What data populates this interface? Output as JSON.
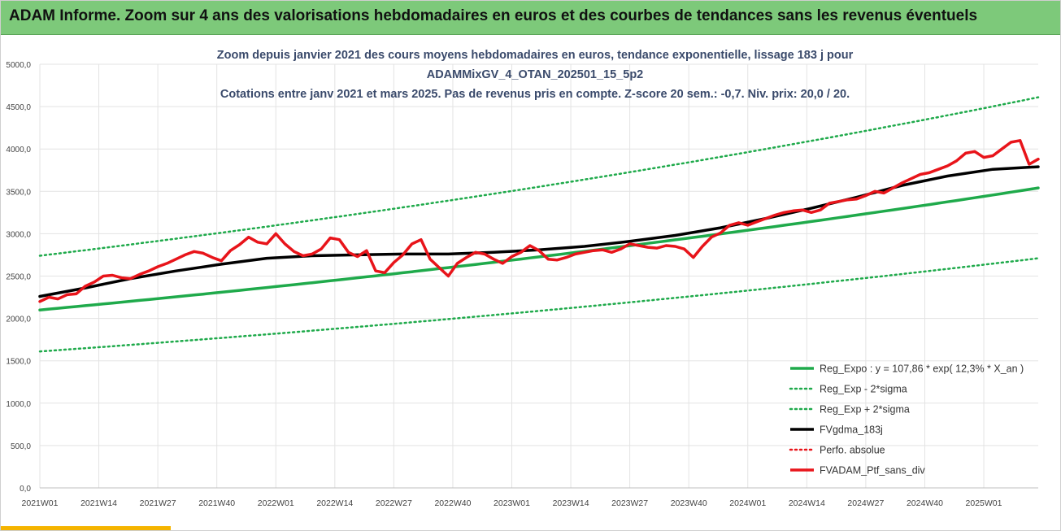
{
  "header": {
    "title": "ADAM Informe. Zoom sur 4 ans des valorisations hebdomadaires en euros et des courbes de tendances sans les revenus éventuels",
    "bg_color": "#7dc97a"
  },
  "chart_data": {
    "type": "line",
    "title_lines": [
      "Zoom depuis janvier 2021 des cours moyens hebdomadaires  en euros, tendance exponentielle, lissage 183 j pour",
      "ADAMMixGV_4_OTAN_202501_15_5p2",
      "Cotations entre janv 2021 et mars 2025. Pas de revenus pris en compte. Z-score 20 sem.: -0,7. Niv. prix: 20,0 / 20."
    ],
    "xlabel": "",
    "ylabel": "",
    "ylim": [
      0,
      5000
    ],
    "y_ticks": [
      "0,0",
      "500,0",
      "1000,0",
      "1500,0",
      "2000,0",
      "2500,0",
      "3000,0",
      "3500,0",
      "4000,0",
      "4500,0",
      "5000,0"
    ],
    "x_range_weeks": [
      0,
      220
    ],
    "x_ticks": [
      {
        "label": "2021W01",
        "week": 0
      },
      {
        "label": "2021W14",
        "week": 13
      },
      {
        "label": "2021W27",
        "week": 26
      },
      {
        "label": "2021W40",
        "week": 39
      },
      {
        "label": "2022W01",
        "week": 52
      },
      {
        "label": "2022W14",
        "week": 65
      },
      {
        "label": "2022W27",
        "week": 78
      },
      {
        "label": "2022W40",
        "week": 91
      },
      {
        "label": "2023W01",
        "week": 104
      },
      {
        "label": "2023W14",
        "week": 117
      },
      {
        "label": "2023W27",
        "week": 130
      },
      {
        "label": "2023W40",
        "week": 143
      },
      {
        "label": "2024W01",
        "week": 156
      },
      {
        "label": "2024W14",
        "week": 169
      },
      {
        "label": "2024W27",
        "week": 182
      },
      {
        "label": "2024W40",
        "week": 195
      },
      {
        "label": "2025W01",
        "week": 208
      }
    ],
    "grid": true,
    "legend_position": "bottom-right",
    "series": [
      {
        "name": "Reg_Expo : y = 107,86 * exp( 12,3% *  X_an )",
        "color": "#1faa4b",
        "style": "solid",
        "width": 3.5,
        "x": [
          0,
          220
        ],
        "y": [
          2100,
          3540
        ],
        "interp": "exp"
      },
      {
        "name": "Reg_Exp - 2*sigma",
        "color": "#1faa4b",
        "style": "dotted",
        "width": 2.5,
        "x": [
          0,
          220
        ],
        "y": [
          1610,
          2710
        ],
        "interp": "exp"
      },
      {
        "name": "Reg_Exp + 2*sigma",
        "color": "#1faa4b",
        "style": "dotted",
        "width": 2.5,
        "x": [
          0,
          220
        ],
        "y": [
          2740,
          4610
        ],
        "interp": "exp"
      },
      {
        "name": "FVgdma_183j",
        "color": "#000000",
        "style": "solid",
        "width": 3.5,
        "x": [
          0,
          10,
          20,
          30,
          40,
          50,
          60,
          70,
          80,
          90,
          100,
          110,
          120,
          130,
          140,
          150,
          160,
          170,
          180,
          190,
          200,
          210,
          220
        ],
        "y": [
          2260,
          2360,
          2470,
          2560,
          2640,
          2710,
          2740,
          2750,
          2760,
          2760,
          2780,
          2810,
          2850,
          2910,
          2980,
          3070,
          3180,
          3300,
          3430,
          3570,
          3680,
          3760,
          3790
        ]
      },
      {
        "name": "Perfo. absolue",
        "color": "#e8141a",
        "style": "dotted",
        "width": 2.5,
        "x": [
          218,
          220
        ],
        "y": [
          3820,
          3880
        ]
      },
      {
        "name": "FVADAM_Ptf_sans_div",
        "color": "#e8141a",
        "style": "solid",
        "width": 3.5,
        "x": [
          0,
          2,
          4,
          6,
          8,
          10,
          12,
          14,
          16,
          18,
          20,
          22,
          24,
          26,
          28,
          30,
          32,
          34,
          36,
          38,
          40,
          42,
          44,
          46,
          48,
          50,
          52,
          54,
          56,
          58,
          60,
          62,
          64,
          66,
          68,
          70,
          72,
          74,
          76,
          78,
          80,
          82,
          84,
          86,
          88,
          90,
          92,
          94,
          96,
          98,
          100,
          102,
          104,
          106,
          108,
          110,
          112,
          114,
          116,
          118,
          120,
          122,
          124,
          126,
          128,
          130,
          132,
          134,
          136,
          138,
          140,
          142,
          144,
          146,
          148,
          150,
          152,
          154,
          156,
          158,
          160,
          162,
          164,
          166,
          168,
          170,
          172,
          174,
          176,
          178,
          180,
          182,
          184,
          186,
          188,
          190,
          192,
          194,
          196,
          198,
          200,
          202,
          204,
          206,
          208,
          210,
          212,
          214,
          216,
          218,
          220
        ],
        "y": [
          2200,
          2250,
          2230,
          2280,
          2290,
          2380,
          2430,
          2500,
          2510,
          2480,
          2470,
          2520,
          2560,
          2610,
          2650,
          2700,
          2750,
          2790,
          2770,
          2720,
          2680,
          2800,
          2870,
          2960,
          2900,
          2880,
          3000,
          2880,
          2790,
          2740,
          2760,
          2820,
          2950,
          2930,
          2780,
          2730,
          2800,
          2560,
          2540,
          2660,
          2750,
          2880,
          2930,
          2700,
          2600,
          2500,
          2650,
          2720,
          2780,
          2760,
          2700,
          2650,
          2730,
          2780,
          2860,
          2800,
          2700,
          2690,
          2720,
          2760,
          2780,
          2800,
          2810,
          2780,
          2820,
          2880,
          2860,
          2840,
          2830,
          2860,
          2850,
          2820,
          2720,
          2850,
          2960,
          3010,
          3100,
          3130,
          3100,
          3140,
          3180,
          3220,
          3250,
          3270,
          3280,
          3250,
          3280,
          3360,
          3380,
          3400,
          3410,
          3450,
          3500,
          3480,
          3540,
          3600,
          3650,
          3700,
          3720,
          3760,
          3800,
          3860,
          3950,
          3970,
          3900,
          3920,
          4000,
          4080,
          4100,
          3820,
          3880
        ]
      }
    ]
  }
}
